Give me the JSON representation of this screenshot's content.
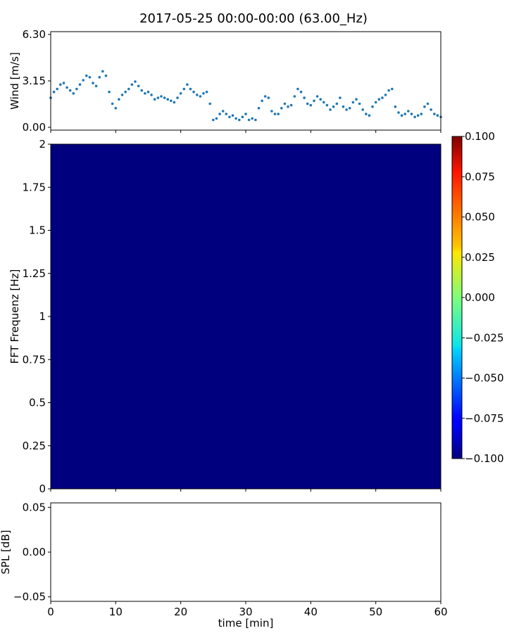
{
  "chart_data": [
    {
      "panel": "wind",
      "type": "scatter",
      "title": "2017-05-25 00:00-00:00 (63.00_Hz)",
      "ylabel": "Wind [m/s]",
      "xlim": [
        0,
        60
      ],
      "ylim": [
        0,
        6.3
      ],
      "yticks": [
        "0.00",
        "3.15",
        "6.30"
      ],
      "color": "#1f77b4",
      "series": [
        {
          "x": [
            0,
            0.5,
            1,
            1.5,
            2,
            2.5,
            3,
            3.5,
            4,
            4.5,
            5,
            5.5,
            6,
            6.5,
            7,
            7.5,
            8,
            8.5,
            9,
            9.5,
            10,
            10.5,
            11,
            11.5,
            12,
            12.5,
            13,
            13.5,
            14,
            14.5,
            15,
            15.5,
            16,
            16.5,
            17,
            17.5,
            18,
            18.5,
            19,
            19.5,
            20,
            20.5,
            21,
            21.5,
            22,
            22.5,
            23,
            23.5,
            24,
            24.5,
            25,
            25.5,
            26,
            26.5,
            27,
            27.5,
            28,
            28.5,
            29,
            29.5,
            30,
            30.5,
            31,
            31.5,
            32,
            32.5,
            33,
            33.5,
            34,
            34.5,
            35,
            35.5,
            36,
            36.5,
            37,
            37.5,
            38,
            38.5,
            39,
            39.5,
            40,
            40.5,
            41,
            41.5,
            42,
            42.5,
            43,
            43.5,
            44,
            44.5,
            45,
            45.5,
            46,
            46.5,
            47,
            47.5,
            48,
            48.5,
            49,
            49.5,
            50,
            50.5,
            51,
            51.5,
            52,
            52.5,
            53,
            53.5,
            54,
            54.5,
            55,
            55.5,
            56,
            56.5,
            57,
            57.5,
            58,
            58.5,
            59,
            59.5,
            60
          ],
          "y": [
            2.0,
            2.4,
            2.6,
            2.9,
            3.0,
            2.7,
            2.5,
            2.3,
            2.6,
            2.9,
            3.2,
            3.5,
            3.4,
            3.0,
            2.8,
            3.4,
            3.8,
            3.5,
            2.4,
            1.6,
            1.3,
            1.9,
            2.2,
            2.4,
            2.6,
            2.9,
            3.1,
            2.8,
            2.5,
            2.3,
            2.4,
            2.2,
            1.9,
            2.0,
            2.1,
            2.0,
            1.9,
            1.8,
            1.7,
            2.0,
            2.3,
            2.6,
            2.9,
            2.6,
            2.4,
            2.2,
            2.1,
            2.3,
            2.4,
            1.6,
            0.5,
            0.6,
            0.9,
            1.1,
            0.9,
            0.7,
            0.8,
            0.6,
            0.5,
            0.7,
            0.9,
            0.5,
            0.6,
            0.5,
            1.3,
            1.8,
            2.1,
            2.0,
            1.1,
            0.9,
            0.9,
            1.3,
            1.6,
            1.4,
            1.5,
            2.1,
            2.6,
            2.4,
            2.0,
            1.6,
            1.5,
            1.8,
            2.1,
            1.9,
            1.7,
            1.5,
            1.2,
            1.4,
            1.6,
            2.0,
            1.4,
            1.2,
            1.3,
            1.7,
            1.9,
            1.6,
            1.2,
            0.9,
            0.8,
            1.4,
            1.7,
            1.9,
            2.0,
            2.2,
            2.5,
            2.6,
            1.4,
            1.0,
            0.8,
            0.9,
            1.1,
            0.9,
            0.7,
            0.8,
            0.9,
            1.4,
            1.6,
            1.2,
            0.9,
            0.8,
            0.7
          ]
        }
      ]
    },
    {
      "panel": "spectrogram",
      "type": "heatmap",
      "ylabel": "FFT Frequenz [Hz]",
      "xlim": [
        0,
        60
      ],
      "ylim": [
        0,
        2
      ],
      "yticks": [
        "0",
        "0.25",
        "0.5",
        "0.75",
        "1",
        "1.25",
        "1.5",
        "1.75",
        "2"
      ],
      "values": [
        [
          -0.1
        ]
      ],
      "fill_color": "#00007f",
      "colorbar": {
        "cmap": "jet",
        "range": [
          -0.1,
          0.1
        ],
        "ticks": [
          "0.100",
          "0.075",
          "0.050",
          "0.025",
          "0.000",
          "−0.025",
          "−0.050",
          "−0.075",
          "−0.100"
        ]
      }
    },
    {
      "panel": "spl",
      "type": "line",
      "ylabel": "SPL [dB]",
      "xlabel": "time [min]",
      "xlim": [
        0,
        60
      ],
      "ylim": [
        -0.055,
        0.055
      ],
      "yticks": [
        "0.05",
        "0.00",
        "−0.05"
      ],
      "xticks": [
        "0",
        "10",
        "20",
        "30",
        "40",
        "50",
        "60"
      ],
      "series": []
    }
  ]
}
